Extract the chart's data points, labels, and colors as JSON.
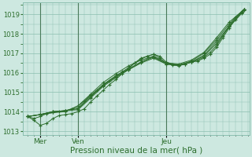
{
  "title": "",
  "xlabel": "Pression niveau de la mer( hPa )",
  "ylabel": "",
  "background_color": "#cde8e0",
  "grid_color": "#8bbfb0",
  "line_color": "#2d6e2d",
  "ylim": [
    1012.8,
    1019.6
  ],
  "xlim": [
    -0.2,
    8.8
  ],
  "yticks": [
    1013,
    1014,
    1015,
    1016,
    1017,
    1018,
    1019
  ],
  "xtick_positions": [
    0.5,
    2.0,
    5.5
  ],
  "xtick_labels": [
    "Mer",
    "Ven",
    "Jeu"
  ],
  "vline_positions": [
    0.5,
    2.0,
    5.5
  ],
  "series": [
    [
      0.0,
      1013.75,
      0.25,
      1013.65,
      0.5,
      1013.75,
      0.75,
      1013.9,
      1.0,
      1013.95,
      1.25,
      1014.0,
      1.5,
      1014.05,
      1.75,
      1014.15,
      2.0,
      1014.3,
      2.25,
      1014.55,
      2.5,
      1014.85,
      2.75,
      1015.1,
      3.0,
      1015.35,
      3.25,
      1015.6,
      3.5,
      1015.8,
      3.75,
      1016.05,
      4.0,
      1016.25,
      4.25,
      1016.5,
      4.5,
      1016.75,
      4.75,
      1016.85,
      5.0,
      1016.95,
      5.25,
      1016.85,
      5.5,
      1016.55,
      5.75,
      1016.45,
      6.0,
      1016.4,
      6.25,
      1016.45,
      6.5,
      1016.55,
      6.75,
      1016.6,
      7.0,
      1016.75,
      7.25,
      1016.95,
      7.5,
      1017.3,
      7.75,
      1017.8,
      8.0,
      1018.3,
      8.25,
      1018.75,
      8.5,
      1019.1,
      8.6,
      1019.25
    ],
    [
      0.0,
      1013.75,
      0.25,
      1013.55,
      0.5,
      1013.3,
      0.75,
      1013.4,
      1.0,
      1013.65,
      1.25,
      1013.8,
      1.5,
      1013.85,
      1.75,
      1013.9,
      2.0,
      1014.0,
      2.25,
      1014.15,
      2.5,
      1014.5,
      2.75,
      1014.8,
      3.0,
      1015.1,
      3.25,
      1015.4,
      3.5,
      1015.65,
      3.75,
      1015.95,
      4.0,
      1016.2,
      4.25,
      1016.5,
      4.5,
      1016.7,
      4.75,
      1016.85,
      5.0,
      1016.95,
      5.25,
      1016.75,
      5.5,
      1016.5,
      5.75,
      1016.4,
      6.0,
      1016.4,
      6.25,
      1016.45,
      6.5,
      1016.55,
      6.75,
      1016.65,
      7.0,
      1016.8,
      7.25,
      1017.05,
      7.5,
      1017.4,
      7.75,
      1017.9,
      8.0,
      1018.4,
      8.25,
      1018.85,
      8.5,
      1019.15,
      8.6,
      1019.25
    ],
    [
      0.0,
      1013.75,
      0.5,
      1013.85,
      1.0,
      1014.0,
      1.5,
      1014.05,
      2.0,
      1014.1,
      2.5,
      1014.7,
      3.0,
      1015.3,
      3.5,
      1015.75,
      4.0,
      1016.15,
      4.5,
      1016.55,
      5.0,
      1016.85,
      5.5,
      1016.5,
      6.0,
      1016.4,
      6.5,
      1016.55,
      7.0,
      1016.85,
      7.5,
      1017.5,
      8.0,
      1018.35,
      8.5,
      1019.05,
      8.6,
      1019.25
    ],
    [
      0.0,
      1013.75,
      0.5,
      1013.85,
      1.0,
      1014.0,
      1.5,
      1014.05,
      2.0,
      1014.15,
      2.5,
      1014.75,
      3.0,
      1015.35,
      3.5,
      1015.8,
      4.0,
      1016.15,
      4.5,
      1016.5,
      5.0,
      1016.75,
      5.5,
      1016.45,
      6.0,
      1016.35,
      6.5,
      1016.55,
      7.0,
      1016.9,
      7.5,
      1017.6,
      8.0,
      1018.4,
      8.5,
      1019.1,
      8.6,
      1019.2
    ],
    [
      0.0,
      1013.75,
      0.5,
      1013.85,
      1.0,
      1014.0,
      1.5,
      1014.05,
      2.0,
      1014.2,
      2.5,
      1014.8,
      3.0,
      1015.4,
      3.5,
      1015.85,
      4.0,
      1016.2,
      4.5,
      1016.55,
      5.0,
      1016.8,
      5.5,
      1016.45,
      6.0,
      1016.4,
      6.5,
      1016.6,
      7.0,
      1017.0,
      7.5,
      1017.7,
      8.0,
      1018.5,
      8.5,
      1019.15,
      8.6,
      1019.25
    ],
    [
      0.0,
      1013.75,
      0.5,
      1013.85,
      1.0,
      1013.95,
      1.5,
      1014.0,
      2.0,
      1014.3,
      2.5,
      1014.9,
      3.0,
      1015.5,
      3.5,
      1015.95,
      4.0,
      1016.35,
      4.5,
      1016.65,
      5.0,
      1016.85,
      5.5,
      1016.5,
      6.0,
      1016.45,
      6.5,
      1016.65,
      7.0,
      1017.05,
      7.5,
      1017.8,
      8.0,
      1018.6,
      8.5,
      1019.15,
      8.6,
      1019.25
    ]
  ]
}
